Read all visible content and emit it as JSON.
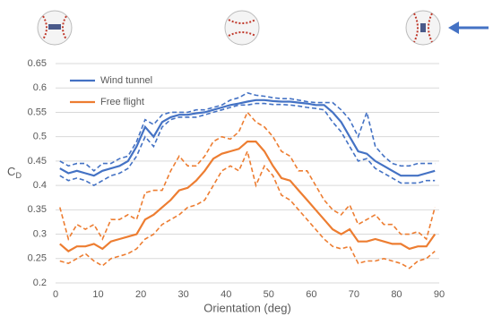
{
  "chart_data": {
    "type": "line",
    "xlabel": "Orientation (deg)",
    "ylabel": "C",
    "ylabel_subscript": "D",
    "x": [
      1,
      3,
      5,
      7,
      9,
      11,
      13,
      15,
      17,
      19,
      21,
      23,
      25,
      27,
      29,
      31,
      33,
      35,
      37,
      39,
      41,
      43,
      45,
      47,
      49,
      51,
      53,
      55,
      57,
      59,
      61,
      63,
      65,
      67,
      69,
      71,
      73,
      75,
      77,
      79,
      81,
      83,
      85,
      87,
      89
    ],
    "series": [
      {
        "name": "Wind tunnel",
        "color": "#4472c4",
        "dashed": false,
        "values": [
          0.435,
          0.425,
          0.43,
          0.425,
          0.42,
          0.43,
          0.435,
          0.44,
          0.45,
          0.48,
          0.52,
          0.5,
          0.53,
          0.54,
          0.545,
          0.545,
          0.548,
          0.55,
          0.555,
          0.56,
          0.565,
          0.568,
          0.572,
          0.575,
          0.575,
          0.573,
          0.572,
          0.572,
          0.57,
          0.568,
          0.565,
          0.565,
          0.55,
          0.53,
          0.5,
          0.47,
          0.465,
          0.45,
          0.44,
          0.43,
          0.42,
          0.42,
          0.42,
          0.425,
          0.43
        ]
      },
      {
        "color": "#4472c4",
        "dashed": true,
        "values": [
          0.45,
          0.44,
          0.445,
          0.445,
          0.43,
          0.445,
          0.445,
          0.455,
          0.46,
          0.49,
          0.535,
          0.525,
          0.545,
          0.55,
          0.55,
          0.55,
          0.555,
          0.555,
          0.56,
          0.565,
          0.575,
          0.58,
          0.59,
          0.585,
          0.583,
          0.58,
          0.578,
          0.578,
          0.575,
          0.572,
          0.57,
          0.57,
          0.57,
          0.555,
          0.535,
          0.5,
          0.55,
          0.48,
          0.46,
          0.445,
          0.44,
          0.44,
          0.445,
          0.445,
          0.445
        ]
      },
      {
        "color": "#4472c4",
        "dashed": true,
        "values": [
          0.42,
          0.41,
          0.415,
          0.41,
          0.4,
          0.41,
          0.42,
          0.425,
          0.435,
          0.46,
          0.5,
          0.48,
          0.52,
          0.535,
          0.54,
          0.54,
          0.54,
          0.545,
          0.55,
          0.555,
          0.56,
          0.565,
          0.565,
          0.568,
          0.568,
          0.566,
          0.566,
          0.565,
          0.563,
          0.56,
          0.558,
          0.555,
          0.53,
          0.51,
          0.48,
          0.45,
          0.455,
          0.435,
          0.425,
          0.415,
          0.405,
          0.405,
          0.405,
          0.41,
          0.41
        ]
      },
      {
        "name": "Free flight",
        "color": "#ed7d31",
        "dashed": false,
        "values": [
          0.28,
          0.265,
          0.275,
          0.275,
          0.28,
          0.27,
          0.285,
          0.29,
          0.295,
          0.3,
          0.33,
          0.34,
          0.355,
          0.37,
          0.39,
          0.395,
          0.41,
          0.43,
          0.455,
          0.465,
          0.47,
          0.475,
          0.49,
          0.49,
          0.47,
          0.44,
          0.415,
          0.41,
          0.39,
          0.37,
          0.35,
          0.33,
          0.31,
          0.3,
          0.31,
          0.285,
          0.285,
          0.29,
          0.285,
          0.28,
          0.28,
          0.27,
          0.275,
          0.275,
          0.3
        ]
      },
      {
        "color": "#ed7d31",
        "dashed": true,
        "values": [
          0.355,
          0.29,
          0.32,
          0.31,
          0.32,
          0.29,
          0.33,
          0.33,
          0.34,
          0.33,
          0.385,
          0.39,
          0.39,
          0.43,
          0.46,
          0.44,
          0.44,
          0.46,
          0.49,
          0.5,
          0.495,
          0.51,
          0.55,
          0.53,
          0.52,
          0.5,
          0.47,
          0.46,
          0.43,
          0.43,
          0.4,
          0.37,
          0.35,
          0.34,
          0.36,
          0.32,
          0.33,
          0.34,
          0.32,
          0.32,
          0.3,
          0.3,
          0.305,
          0.29,
          0.355
        ]
      },
      {
        "color": "#ed7d31",
        "dashed": true,
        "values": [
          0.245,
          0.24,
          0.25,
          0.26,
          0.245,
          0.235,
          0.25,
          0.255,
          0.26,
          0.27,
          0.29,
          0.3,
          0.32,
          0.33,
          0.34,
          0.355,
          0.36,
          0.37,
          0.4,
          0.43,
          0.44,
          0.43,
          0.47,
          0.4,
          0.44,
          0.42,
          0.38,
          0.37,
          0.35,
          0.33,
          0.31,
          0.29,
          0.275,
          0.27,
          0.275,
          0.24,
          0.245,
          0.245,
          0.25,
          0.245,
          0.24,
          0.23,
          0.245,
          0.25,
          0.265
        ]
      }
    ],
    "xlim": [
      0,
      90
    ],
    "xticks": [
      0,
      10,
      20,
      30,
      40,
      50,
      60,
      70,
      80,
      90
    ],
    "ylim": [
      0.2,
      0.65
    ],
    "yticks": [
      0.2,
      0.25,
      0.3,
      0.35,
      0.4,
      0.45,
      0.5,
      0.55,
      0.6,
      0.65
    ],
    "grid": true,
    "legend": "upper-left"
  }
}
